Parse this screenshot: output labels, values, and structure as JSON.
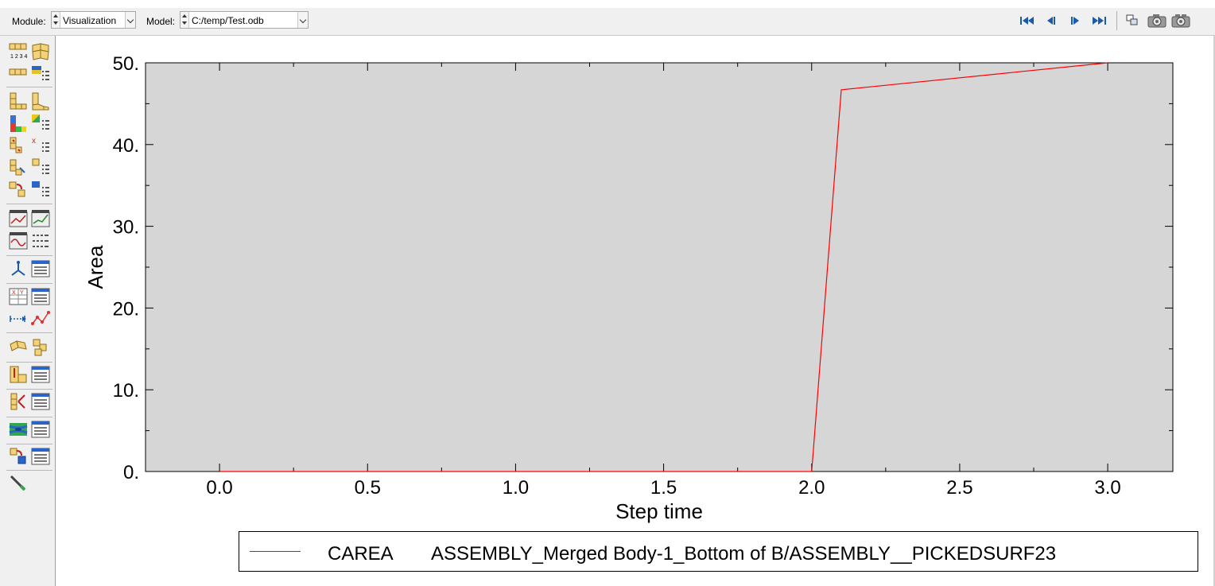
{
  "toolbar": {
    "module_label": "Module:",
    "module_value": "Visualization",
    "model_label": "Model:",
    "model_value": "C:/temp/Test.odb",
    "icons": [
      "first-frame-icon",
      "previous-frame-icon",
      "next-frame-icon",
      "last-frame-icon",
      "viewport-layout-icon",
      "camera-icon",
      "movie-camera-icon"
    ]
  },
  "toolbox": {
    "icons": [
      "plot-undeformed-shape-icon",
      "plot-deformed-shape-icon",
      "common-options-icon",
      "superimpose-options-icon",
      "allow-multiple-plot-states-icon",
      "plot-contours-icon",
      "contour-options-icon",
      "plot-symbols-icon",
      "symbol-options-icon",
      "plot-material-orientations-icon",
      "orientation-options-icon",
      "animate-scale-factor-icon",
      "animate-time-history-icon",
      "animate-harmonic-icon",
      "animation-options-icon",
      "create-xy-data-icon",
      "xy-data-manager-icon",
      "create-xy-plot-icon",
      "xy-plot-manager-icon",
      "create-path-icon",
      "path-display-icon",
      "create-display-group-icon",
      "display-group-manager-icon",
      "query-icon",
      "view-cut-manager-icon",
      "free-body-cut-icon",
      "free-body-manager-icon",
      "stream-icon",
      "stream-manager-icon",
      "display-body-icon",
      "display-body-manager-icon",
      "edit-tool-icon"
    ]
  },
  "chart_data": {
    "type": "line",
    "title": "",
    "xlabel": "Step time",
    "ylabel": "Area",
    "xlim": [
      -0.25,
      3.22
    ],
    "ylim": [
      0,
      50
    ],
    "x_ticks": [
      0.0,
      0.5,
      1.0,
      1.5,
      2.0,
      2.5,
      3.0
    ],
    "x_tick_labels": [
      "0.0",
      "0.5",
      "1.0",
      "1.5",
      "2.0",
      "2.5",
      "3.0"
    ],
    "y_ticks": [
      0,
      10,
      20,
      30,
      40,
      50
    ],
    "y_tick_labels": [
      "0.",
      "10.",
      "20.",
      "30.",
      "40.",
      "50."
    ],
    "plot_background": "#d6d6d6",
    "grid": false,
    "legend_placement": "bottom",
    "series": [
      {
        "name": "CAREA",
        "description": "ASSEMBLY_Merged Body-1_Bottom of B/ASSEMBLY__PICKEDSURF23",
        "color": "#ff0000",
        "x": [
          0.0,
          1.0,
          2.0,
          2.1,
          3.0
        ],
        "y": [
          0.0,
          0.0,
          0.0,
          46.7,
          50.0
        ]
      }
    ]
  }
}
